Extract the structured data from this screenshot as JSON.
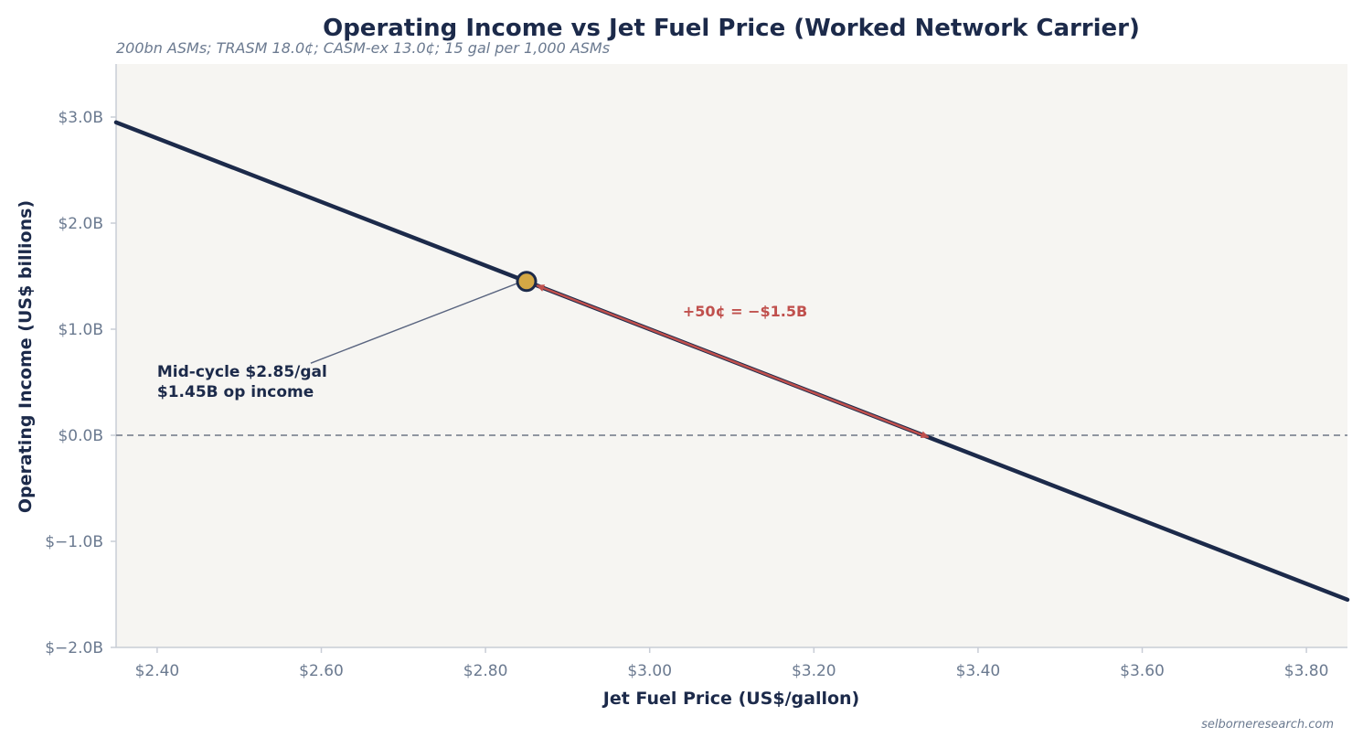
{
  "chart_data": {
    "type": "line",
    "title": "Operating Income vs Jet Fuel Price (Worked Network Carrier)",
    "subtitle": "200bn ASMs; TRASM 18.0¢; CASM-ex 13.0¢; 15 gal per 1,000 ASMs",
    "xlabel": "Jet Fuel Price (US$/gallon)",
    "ylabel": "Operating Income (US$ billions)",
    "xlim": [
      2.35,
      3.85
    ],
    "ylim": [
      -2.0,
      3.5
    ],
    "x_ticks": [
      2.4,
      2.6,
      2.8,
      3.0,
      3.2,
      3.4,
      3.6,
      3.8
    ],
    "x_tick_labels": [
      "$2.40",
      "$2.60",
      "$2.80",
      "$3.00",
      "$3.20",
      "$3.40",
      "$3.60",
      "$3.80"
    ],
    "y_ticks": [
      -2.0,
      -1.0,
      0.0,
      1.0,
      2.0,
      3.0
    ],
    "y_tick_labels": [
      "$−2.0B",
      "$−1.0B",
      "$0.0B",
      "$1.0B",
      "$2.0B",
      "$3.0B"
    ],
    "series": [
      {
        "x": [
          2.35,
          3.85
        ],
        "values": [
          2.95,
          -1.55
        ]
      }
    ],
    "zero_line": 0.0,
    "highlight_point": {
      "x": 2.85,
      "y": 1.45
    },
    "arrow": {
      "from": {
        "x": 2.85,
        "y": 1.45
      },
      "to": {
        "x": 3.3333,
        "y": 0.0
      }
    },
    "annotations": {
      "point_label_line1": "Mid-cycle $2.85/gal",
      "point_label_line2": "$1.45B op income",
      "arrow_label": "+50¢ = −$1.5B"
    },
    "grid": false,
    "colors": {
      "line": "#1c2a4a",
      "point": "#d4a845",
      "arrow": "#c0504d",
      "plot_bg": "#f6f5f2",
      "zero_line": "#8f96a0"
    }
  },
  "credit": "selborneresearch.com"
}
